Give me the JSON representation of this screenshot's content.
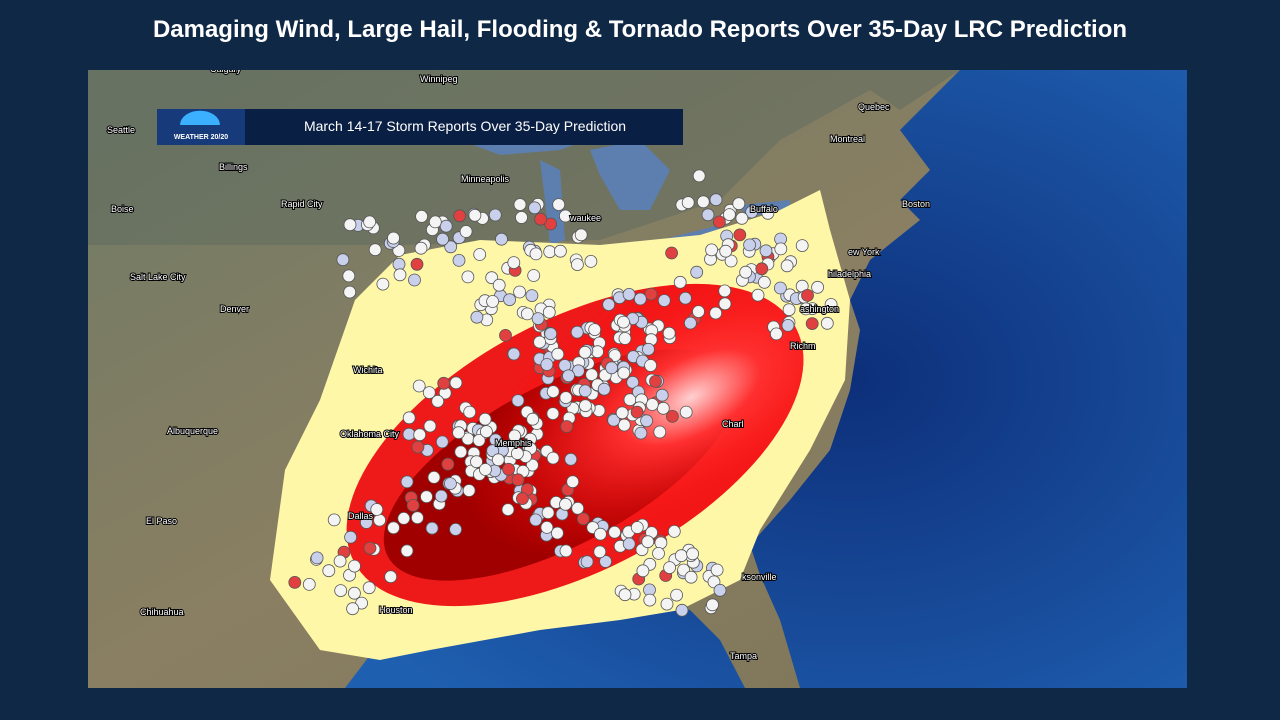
{
  "title": "Damaging Wind, Large Hail, Flooding & Tornado Reports Over 35-Day LRC Prediction",
  "banner": {
    "logo": "WEATHER 20/20",
    "text": "March 14-17 Storm Reports Over 35-Day Prediction"
  },
  "cities": [
    "Calgary",
    "Winnipeg",
    "Quebec",
    "Seattle",
    "Montreal",
    "Billings",
    "Minneapolis",
    "Boise",
    "Rapid City",
    "waukee",
    "Buffalo",
    "Boston",
    "ew York",
    "Salt Lake City",
    "hiladelphia",
    "ashington",
    "Denver",
    "Richm",
    "Wichita",
    "Albuquerque",
    "Oklahoma City",
    "Memphis",
    "Charl",
    "El Paso",
    "Dallas",
    "Houston",
    "ksonville",
    "Chihuahua",
    "Tampa"
  ]
}
